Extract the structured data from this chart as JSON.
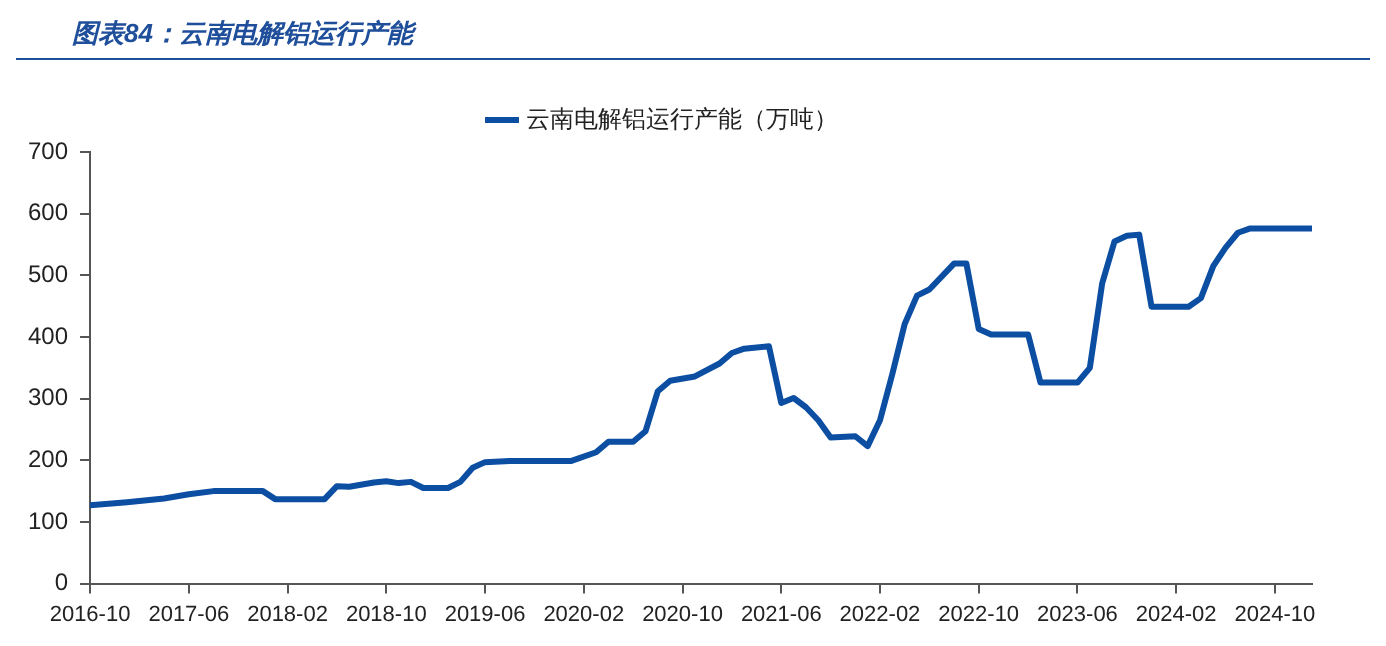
{
  "chart_data": {
    "type": "line",
    "title": "图表84：云南电解铝运行产能",
    "x": [
      "2016-10",
      "2017-01",
      "2017-03",
      "2017-04",
      "2017-06",
      "2017-08",
      "2017-12",
      "2018-01",
      "2018-05",
      "2018-06",
      "2018-07",
      "2018-09",
      "2018-10",
      "2018-11",
      "2018-12",
      "2019-01",
      "2019-03",
      "2019-04",
      "2019-05",
      "2019-06",
      "2019-08",
      "2020-01",
      "2020-03",
      "2020-04",
      "2020-06",
      "2020-07",
      "2020-08",
      "2020-09",
      "2020-11",
      "2021-01",
      "2021-02",
      "2021-03",
      "2021-05",
      "2021-06",
      "2021-07",
      "2021-08",
      "2021-09",
      "2021-10",
      "2021-12",
      "2022-01",
      "2022-02",
      "2022-03",
      "2022-04",
      "2022-05",
      "2022-06",
      "2022-08",
      "2022-09",
      "2022-10",
      "2022-11",
      "2023-02",
      "2023-03",
      "2023-06",
      "2023-07",
      "2023-08",
      "2023-09",
      "2023-10",
      "2023-11",
      "2023-12",
      "2024-03",
      "2024-04",
      "2024-05",
      "2024-06",
      "2024-07",
      "2024-08",
      "2025-01"
    ],
    "series": [
      {
        "name": "云南电解铝运行产能（万吨）",
        "color": "#0b4ea2",
        "values": [
          127,
          132,
          136,
          138,
          145,
          150,
          150,
          137,
          137,
          158,
          157,
          164,
          166,
          163,
          165,
          155,
          155,
          165,
          188,
          197,
          199,
          199,
          213,
          230,
          230,
          247,
          312,
          329,
          336,
          357,
          374,
          381,
          385,
          293,
          301,
          286,
          265,
          237,
          239,
          223,
          265,
          340,
          421,
          467,
          477,
          519,
          519,
          413,
          404,
          404,
          326,
          326,
          350,
          487,
          555,
          564,
          566,
          449,
          449,
          463,
          515,
          545,
          569,
          576,
          576
        ]
      }
    ],
    "xlim": [
      "2016-10",
      "2025-01"
    ],
    "xticks": [
      "2016-10",
      "2017-06",
      "2018-02",
      "2018-10",
      "2019-06",
      "2020-02",
      "2020-10",
      "2021-06",
      "2022-02",
      "2022-10",
      "2023-06",
      "2024-02",
      "2024-10"
    ],
    "ylim": [
      0,
      700
    ],
    "yticks": [
      0,
      100,
      200,
      300,
      400,
      500,
      600,
      700
    ],
    "grid": false,
    "legend": "top",
    "marker": "none",
    "line_style": "solid"
  }
}
